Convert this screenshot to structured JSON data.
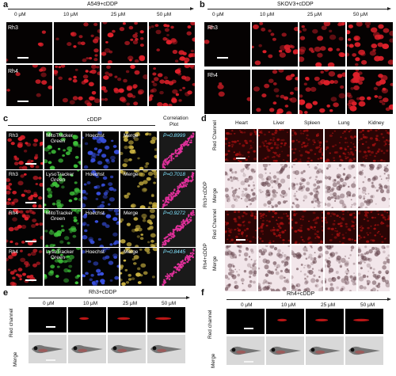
{
  "panels": {
    "a": {
      "letter": "a",
      "title": "A549+cDDP",
      "concentrations": [
        "0 μM",
        "10 μM",
        "25 μM",
        "50 μM"
      ],
      "rows": [
        "Rh3",
        "Rh4"
      ]
    },
    "b": {
      "letter": "b",
      "title": "SKOV3+cDDP",
      "concentrations": [
        "0 μM",
        "10 μM",
        "25 μM",
        "50 μM"
      ],
      "rows": [
        "Rh3",
        "Rh4"
      ]
    },
    "c": {
      "letter": "c",
      "title": "cDDP",
      "plot_header_1": "Correlation",
      "plot_header_2": "Plot",
      "rows": [
        {
          "compound": "Rh3",
          "tracker_1": "MitoTracker",
          "tracker_2": "Green",
          "hoechst": "Hoechst",
          "merge": "Merge",
          "p": "P=0.8999"
        },
        {
          "compound": "Rh3",
          "tracker_1": "LysoTracker",
          "tracker_2": "Green",
          "hoechst": "Hoechst",
          "merge": "Merge",
          "p": "P=0.7018"
        },
        {
          "compound": "Rh4",
          "tracker_1": "MitoTracker",
          "tracker_2": "Green",
          "hoechst": "Hoechst",
          "merge": "Merge",
          "p": "P=0.9272"
        },
        {
          "compound": "Rh4",
          "tracker_1": "LysoTracker",
          "tracker_2": "Green",
          "hoechst": "Hoechst",
          "merge": "Merge",
          "p": "P=0.8445"
        }
      ]
    },
    "d": {
      "letter": "d",
      "organs": [
        "Heart",
        "Liver",
        "Spleen",
        "Lung",
        "Kidney"
      ],
      "groups": [
        {
          "name": "Rh3+cDDP",
          "channels": [
            "Red Channel",
            "Merge"
          ]
        },
        {
          "name": "Rh4+cDDP",
          "channels": [
            "Red Channel",
            "Merge"
          ]
        }
      ]
    },
    "e": {
      "letter": "e",
      "title": "Rh3+cDDP",
      "concentrations": [
        "0 μM",
        "10 μM",
        "25 μM",
        "50 μM"
      ],
      "rows": [
        "Red channel",
        "Merge"
      ]
    },
    "f": {
      "letter": "f",
      "title": "Rh4+cDDP",
      "concentrations": [
        "0 μM",
        "10 μM",
        "25 μM",
        "50 μM"
      ],
      "rows": [
        "Red channel",
        "Merge"
      ]
    }
  },
  "colors": {
    "red_cells": "#e0202a",
    "green_cells": "#3ec23a",
    "blue_nuclei": "#3850e0",
    "merge_cells": "#c8b040",
    "correlation": "#e0309a",
    "tissue_bg": "#f2e6ea"
  }
}
